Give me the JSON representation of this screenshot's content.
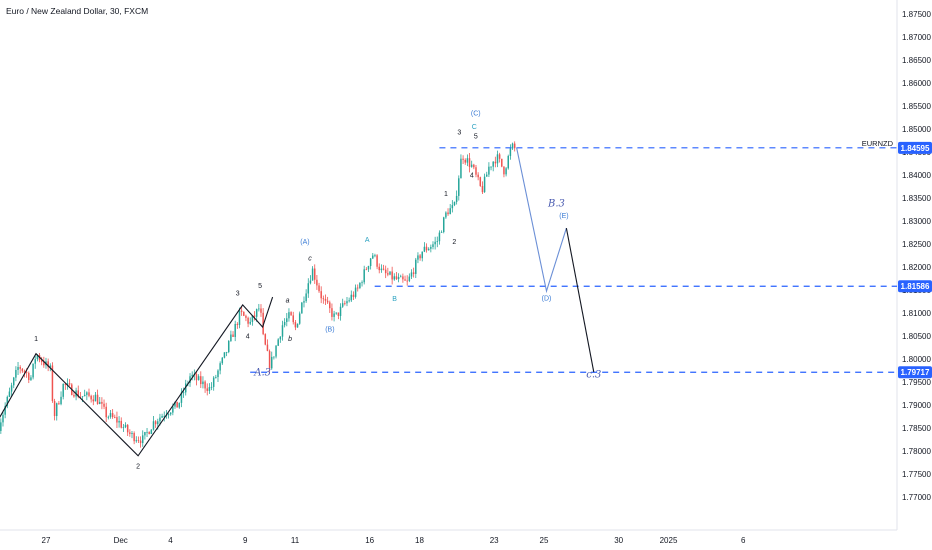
{
  "chart_data": {
    "type": "candlestick",
    "title": "Euro / New Zealand Dollar, 30, FXCM",
    "symbol": "EURNZD",
    "ylim": [
      1.767,
      1.877
    ],
    "y_ticks": [
      "1.87500",
      "1.87000",
      "1.86500",
      "1.86000",
      "1.85500",
      "1.85000",
      "1.84500",
      "1.84000",
      "1.83500",
      "1.83000",
      "1.82500",
      "1.82000",
      "1.81500",
      "1.81000",
      "1.80500",
      "1.80000",
      "1.79500",
      "1.79000",
      "1.78500",
      "1.78000",
      "1.77500",
      "1.77000"
    ],
    "x_ticks": [
      {
        "label": "27",
        "t": 0.0
      },
      {
        "label": "Dec",
        "t": 1.5
      },
      {
        "label": "4",
        "t": 2.5
      },
      {
        "label": "9",
        "t": 4.0
      },
      {
        "label": "11",
        "t": 5.0
      },
      {
        "label": "16",
        "t": 6.5
      },
      {
        "label": "18",
        "t": 7.5
      },
      {
        "label": "23",
        "t": 9.0
      },
      {
        "label": "25",
        "t": 10.0
      },
      {
        "label": "30",
        "t": 11.5
      },
      {
        "label": "2025",
        "t": 12.5
      },
      {
        "label": "6",
        "t": 14.0
      }
    ],
    "price_levels": [
      {
        "value": 1.84595,
        "label": "1.84595",
        "t_start": 7.9,
        "kind": "symbol"
      },
      {
        "value": 1.81586,
        "label": "1.81586",
        "t_start": 6.6,
        "kind": "level"
      },
      {
        "value": 1.79717,
        "label": "1.79717",
        "t_start": 4.1,
        "kind": "level"
      }
    ],
    "price_path": [
      {
        "t": -0.95,
        "p": 1.7855
      },
      {
        "t": -0.55,
        "p": 1.7985
      },
      {
        "t": -0.3,
        "p": 1.796
      },
      {
        "t": -0.2,
        "p": 1.8012
      },
      {
        "t": 0.1,
        "p": 1.7975
      },
      {
        "t": 0.15,
        "p": 1.7872
      },
      {
        "t": 0.35,
        "p": 1.7945
      },
      {
        "t": 0.7,
        "p": 1.792
      },
      {
        "t": 1.0,
        "p": 1.7918
      },
      {
        "t": 1.2,
        "p": 1.788
      },
      {
        "t": 1.45,
        "p": 1.7865
      },
      {
        "t": 1.7,
        "p": 1.7835
      },
      {
        "t": 1.95,
        "p": 1.7825
      },
      {
        "t": 2.15,
        "p": 1.7862
      },
      {
        "t": 2.4,
        "p": 1.7885
      },
      {
        "t": 2.65,
        "p": 1.79
      },
      {
        "t": 2.9,
        "p": 1.7965
      },
      {
        "t": 3.3,
        "p": 1.7935
      },
      {
        "t": 3.6,
        "p": 1.801
      },
      {
        "t": 3.9,
        "p": 1.81
      },
      {
        "t": 4.1,
        "p": 1.8078
      },
      {
        "t": 4.3,
        "p": 1.8115
      },
      {
        "t": 4.35,
        "p": 1.805
      },
      {
        "t": 4.5,
        "p": 1.7985
      },
      {
        "t": 4.75,
        "p": 1.8075
      },
      {
        "t": 4.9,
        "p": 1.8095
      },
      {
        "t": 5.0,
        "p": 1.8065
      },
      {
        "t": 5.2,
        "p": 1.8145
      },
      {
        "t": 5.35,
        "p": 1.8195
      },
      {
        "t": 5.55,
        "p": 1.813
      },
      {
        "t": 5.8,
        "p": 1.809
      },
      {
        "t": 6.0,
        "p": 1.812
      },
      {
        "t": 6.25,
        "p": 1.815
      },
      {
        "t": 6.55,
        "p": 1.823
      },
      {
        "t": 6.75,
        "p": 1.8188
      },
      {
        "t": 7.0,
        "p": 1.8175
      },
      {
        "t": 7.25,
        "p": 1.8165
      },
      {
        "t": 7.55,
        "p": 1.8235
      },
      {
        "t": 7.85,
        "p": 1.8255
      },
      {
        "t": 8.05,
        "p": 1.8322
      },
      {
        "t": 8.2,
        "p": 1.833
      },
      {
        "t": 8.35,
        "p": 1.8445
      },
      {
        "t": 8.55,
        "p": 1.842
      },
      {
        "t": 8.75,
        "p": 1.8365
      },
      {
        "t": 8.9,
        "p": 1.842
      },
      {
        "t": 9.05,
        "p": 1.844
      },
      {
        "t": 9.2,
        "p": 1.841
      },
      {
        "t": 9.35,
        "p": 1.8462
      },
      {
        "t": 9.45,
        "p": 1.8455
      }
    ],
    "wave_paths": [
      {
        "name": "black-impulse",
        "color": "#131722",
        "points": [
          {
            "t": -0.95,
            "p": 1.787
          },
          {
            "t": -0.2,
            "p": 1.8012
          },
          {
            "t": 1.85,
            "p": 1.779
          },
          {
            "t": 3.95,
            "p": 1.8118
          },
          {
            "t": 4.35,
            "p": 1.807
          },
          {
            "t": 4.55,
            "p": 1.8135
          }
        ]
      },
      {
        "name": "blue-projection",
        "color": "#6b8fd6",
        "points": [
          {
            "t": 9.45,
            "p": 1.846
          },
          {
            "t": 10.05,
            "p": 1.8148
          },
          {
            "t": 10.45,
            "p": 1.8285
          }
        ]
      },
      {
        "name": "black-projection",
        "color": "#131722",
        "points": [
          {
            "t": 10.45,
            "p": 1.8285
          },
          {
            "t": 11.0,
            "p": 1.7972
          }
        ]
      }
    ],
    "wave_labels": [
      {
        "text": "1",
        "t": -0.2,
        "p": 1.804,
        "color": "#131722",
        "style": "normal"
      },
      {
        "text": "2",
        "t": 1.85,
        "p": 1.7762,
        "color": "#131722",
        "style": "normal"
      },
      {
        "text": "3",
        "t": 3.85,
        "p": 1.8138,
        "color": "#131722",
        "style": "normal"
      },
      {
        "text": "4",
        "t": 4.05,
        "p": 1.8045,
        "color": "#131722",
        "style": "normal"
      },
      {
        "text": "5",
        "t": 4.3,
        "p": 1.8155,
        "color": "#131722",
        "style": "normal"
      },
      {
        "text": "A.3",
        "t": 4.35,
        "p": 1.7965,
        "color": "#4a5bb0",
        "style": "italic"
      },
      {
        "text": "a",
        "t": 4.85,
        "p": 1.8123,
        "color": "#131722",
        "style": "italic"
      },
      {
        "text": "b",
        "t": 4.9,
        "p": 1.804,
        "color": "#131722",
        "style": "italic"
      },
      {
        "text": "c",
        "t": 5.3,
        "p": 1.8215,
        "color": "#131722",
        "style": "italic"
      },
      {
        "text": "(A)",
        "t": 5.2,
        "p": 1.825,
        "color": "#3a7bd5",
        "style": "normal"
      },
      {
        "text": "(B)",
        "t": 5.7,
        "p": 1.806,
        "color": "#3a7bd5",
        "style": "normal"
      },
      {
        "text": "A",
        "t": 6.45,
        "p": 1.8255,
        "color": "#2aa1c0",
        "style": "normal"
      },
      {
        "text": "B",
        "t": 7.0,
        "p": 1.8127,
        "color": "#2aa1c0",
        "style": "normal"
      },
      {
        "text": "1",
        "t": 8.03,
        "p": 1.8355,
        "color": "#131722",
        "style": "normal"
      },
      {
        "text": "2",
        "t": 8.2,
        "p": 1.825,
        "color": "#131722",
        "style": "normal"
      },
      {
        "text": "3",
        "t": 8.3,
        "p": 1.8488,
        "color": "#131722",
        "style": "normal"
      },
      {
        "text": "4",
        "t": 8.55,
        "p": 1.8395,
        "color": "#131722",
        "style": "normal"
      },
      {
        "text": "5",
        "t": 8.63,
        "p": 1.848,
        "color": "#131722",
        "style": "normal"
      },
      {
        "text": "C",
        "t": 8.6,
        "p": 1.85,
        "color": "#2aa1c0",
        "style": "normal"
      },
      {
        "text": "(C)",
        "t": 8.63,
        "p": 1.853,
        "color": "#3a7bd5",
        "style": "normal"
      },
      {
        "text": "B.3",
        "t": 10.25,
        "p": 1.8332,
        "color": "#4a5bb0",
        "style": "italic"
      },
      {
        "text": "(E)",
        "t": 10.4,
        "p": 1.8307,
        "color": "#3a7bd5",
        "style": "normal"
      },
      {
        "text": "(D)",
        "t": 10.05,
        "p": 1.8128,
        "color": "#3a7bd5",
        "style": "normal"
      },
      {
        "text": "c.3",
        "t": 11.0,
        "p": 1.796,
        "color": "#4a5bb0",
        "style": "italic"
      }
    ],
    "colors": {
      "up": "#26a69a",
      "down": "#ef5350",
      "level_line": "#2962ff",
      "badge": "#2962ff"
    }
  }
}
